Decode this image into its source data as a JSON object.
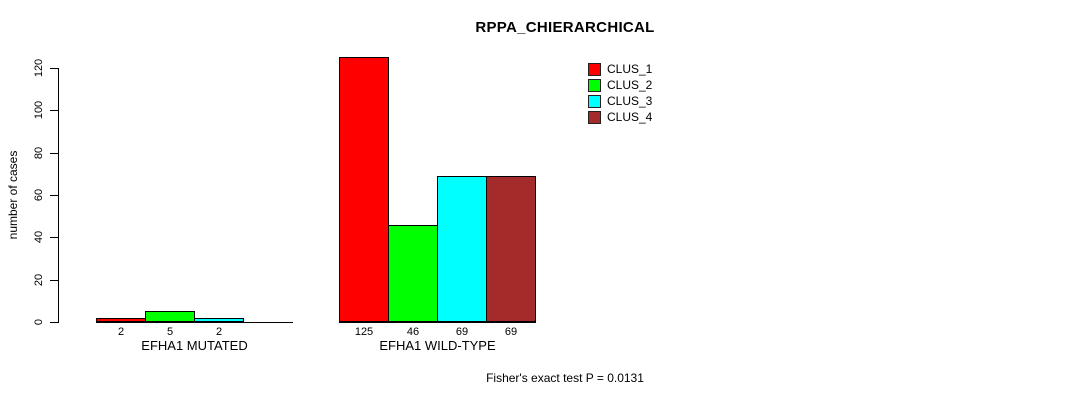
{
  "title": "RPPA_CHIERARCHICAL",
  "footer": "Fisher's exact test P = 0.0131",
  "y_axis": {
    "label": "number of cases",
    "ticks": [
      0,
      20,
      40,
      60,
      80,
      100,
      120
    ]
  },
  "chart_data": {
    "type": "bar",
    "title": "RPPA_CHIERARCHICAL",
    "xlabel": "",
    "ylabel": "number of cases",
    "ylim": [
      0,
      120
    ],
    "grid": false,
    "legend_position": "top-right",
    "categories": [
      "EFHA1 MUTATED",
      "EFHA1 WILD-TYPE"
    ],
    "series": [
      {
        "name": "CLUS_1",
        "color": "#FF0000",
        "values": [
          2,
          125
        ]
      },
      {
        "name": "CLUS_2",
        "color": "#00FF00",
        "values": [
          5,
          46
        ]
      },
      {
        "name": "CLUS_3",
        "color": "#00FFFF",
        "values": [
          2,
          69
        ]
      },
      {
        "name": "CLUS_4",
        "color": "#A52A2A",
        "values": [
          0,
          69
        ]
      }
    ],
    "bar_value_labels": [
      [
        "2",
        "5",
        "2",
        ""
      ],
      [
        "125",
        "46",
        "69",
        "69"
      ]
    ],
    "annotation": "Fisher's exact test P = 0.0131"
  },
  "colors": {
    "clus_1": "#FF0000",
    "clus_2": "#00FF00",
    "clus_3": "#00FFFF",
    "clus_4": "#A52A2A",
    "axis": "#000000",
    "background": "#FFFFFF"
  }
}
